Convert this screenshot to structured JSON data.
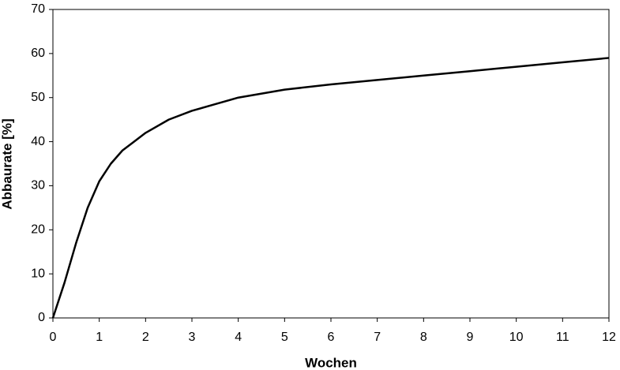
{
  "chart_data": {
    "type": "line",
    "x_label": "Wochen",
    "y_label": "Abbaurate [%]",
    "xlim": [
      0,
      12
    ],
    "xticks": [
      0,
      1,
      2,
      3,
      4,
      5,
      6,
      7,
      8,
      9,
      10,
      11,
      12
    ],
    "ylim": [
      0,
      70
    ],
    "yticks": [
      0,
      10,
      20,
      30,
      40,
      50,
      60,
      70
    ],
    "grid": false,
    "series": [
      {
        "color": "#000000",
        "x": [
          0,
          0.25,
          0.5,
          0.75,
          1,
          1.25,
          1.5,
          1.75,
          2,
          2.5,
          3,
          3.5,
          4,
          5,
          6,
          7,
          8,
          9,
          10,
          11,
          12
        ],
        "values": [
          0,
          8,
          17,
          25,
          31,
          35,
          38,
          40,
          42,
          45,
          47,
          48.5,
          50,
          51.8,
          53,
          54,
          55,
          56,
          57,
          58,
          59
        ]
      }
    ]
  }
}
